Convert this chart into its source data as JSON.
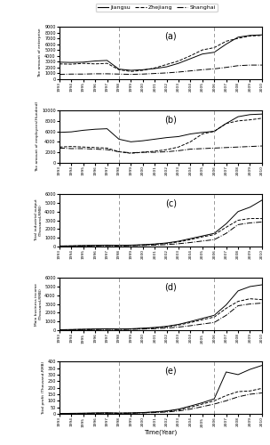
{
  "years": [
    1993,
    1994,
    1995,
    1996,
    1997,
    1998,
    1999,
    2000,
    2001,
    2002,
    2003,
    2004,
    2005,
    2006,
    2007,
    2008,
    2009,
    2010
  ],
  "vlines": [
    1998,
    2006
  ],
  "legend_labels": [
    "Jiangsu",
    "Zhejiang",
    "Shanghai"
  ],
  "line_styles": [
    "-",
    "--",
    "-."
  ],
  "line_color": "black",
  "panel_labels": [
    "(a)",
    "(b)",
    "(c)",
    "(d)",
    "(e)"
  ],
  "panel_a_ylabel": "The amount of enterprise",
  "panel_b_ylabel": "The amount of employees(Hundred)",
  "panel_c_ylabel": "Total industrial output\n(Thousand,RMB)",
  "panel_d_ylabel": "Main business income\n(Thousand,RMB)",
  "panel_e_ylabel": "Total profit (Thousand,RMB)",
  "xlabel": "Time(Year)",
  "panel_a": {
    "jiangsu": [
      2900,
      2850,
      2900,
      3100,
      3200,
      1700,
      1500,
      1600,
      1800,
      2100,
      2700,
      3500,
      4300,
      4600,
      6000,
      7200,
      7500,
      7600
    ],
    "zhejiang": [
      2600,
      2550,
      2700,
      2600,
      2700,
      1600,
      1300,
      1500,
      1900,
      2500,
      3100,
      4000,
      5000,
      5400,
      6500,
      7000,
      7400,
      7500
    ],
    "shanghai": [
      800,
      850,
      850,
      900,
      900,
      850,
      800,
      850,
      950,
      1050,
      1200,
      1400,
      1600,
      1750,
      2000,
      2300,
      2400,
      2400
    ],
    "ylim": [
      0,
      9000
    ],
    "yticks": [
      0,
      1000,
      2000,
      3000,
      4000,
      5000,
      6000,
      7000,
      8000,
      9000
    ]
  },
  "panel_b": {
    "jiangsu": [
      5800,
      5900,
      6200,
      6400,
      6500,
      4500,
      4000,
      4200,
      4500,
      4800,
      5000,
      5500,
      5800,
      6000,
      7500,
      8800,
      9200,
      9300
    ],
    "zhejiang": [
      3000,
      3100,
      3000,
      2900,
      2800,
      2100,
      1800,
      2000,
      2200,
      2500,
      3000,
      4000,
      5500,
      6000,
      7500,
      8000,
      8200,
      8500
    ],
    "shanghai": [
      2800,
      2700,
      2700,
      2600,
      2500,
      2100,
      1900,
      2000,
      2000,
      2100,
      2300,
      2600,
      2700,
      2800,
      2900,
      3000,
      3100,
      3200
    ],
    "ylim": [
      0,
      10000
    ],
    "yticks": [
      0,
      2000,
      4000,
      6000,
      8000,
      10000
    ]
  },
  "panel_c": {
    "jiangsu": [
      50,
      70,
      100,
      130,
      150,
      130,
      150,
      200,
      280,
      400,
      600,
      900,
      1200,
      1500,
      2600,
      4000,
      4500,
      5300
    ],
    "zhejiang": [
      40,
      55,
      80,
      100,
      120,
      100,
      120,
      170,
      240,
      340,
      520,
      780,
      1100,
      1350,
      2200,
      3000,
      3200,
      3200
    ],
    "shanghai": [
      30,
      40,
      55,
      70,
      85,
      70,
      85,
      110,
      150,
      210,
      310,
      450,
      620,
      780,
      1500,
      2500,
      2700,
      2800
    ],
    "ylim": [
      0,
      6000
    ],
    "yticks": [
      0,
      1000,
      2000,
      3000,
      4000,
      5000,
      6000
    ]
  },
  "panel_d": {
    "jiangsu": [
      50,
      70,
      100,
      130,
      160,
      130,
      160,
      220,
      310,
      440,
      660,
      990,
      1350,
      1700,
      2900,
      4500,
      5000,
      5200
    ],
    "zhejiang": [
      40,
      55,
      80,
      110,
      130,
      110,
      130,
      185,
      260,
      375,
      575,
      870,
      1200,
      1500,
      2500,
      3300,
      3600,
      3500
    ],
    "shanghai": [
      30,
      42,
      60,
      78,
      95,
      78,
      95,
      125,
      170,
      235,
      350,
      510,
      700,
      880,
      1700,
      2800,
      3000,
      3100
    ],
    "ylim": [
      0,
      6000
    ],
    "yticks": [
      0,
      1000,
      2000,
      3000,
      4000,
      5000,
      6000
    ]
  },
  "panel_e": {
    "jiangsu": [
      2,
      4,
      5,
      7,
      8,
      6,
      7,
      10,
      15,
      22,
      36,
      60,
      85,
      115,
      320,
      300,
      340,
      370
    ],
    "zhejiang": [
      2,
      3,
      4,
      5,
      6,
      5,
      6,
      9,
      13,
      19,
      30,
      50,
      75,
      100,
      140,
      170,
      175,
      195
    ],
    "shanghai": [
      1,
      2,
      3,
      4,
      5,
      4,
      5,
      7,
      10,
      14,
      22,
      36,
      55,
      75,
      100,
      130,
      150,
      160
    ],
    "ylim": [
      0,
      400
    ],
    "yticks": [
      0,
      50,
      100,
      150,
      200,
      250,
      300,
      350,
      400
    ]
  }
}
